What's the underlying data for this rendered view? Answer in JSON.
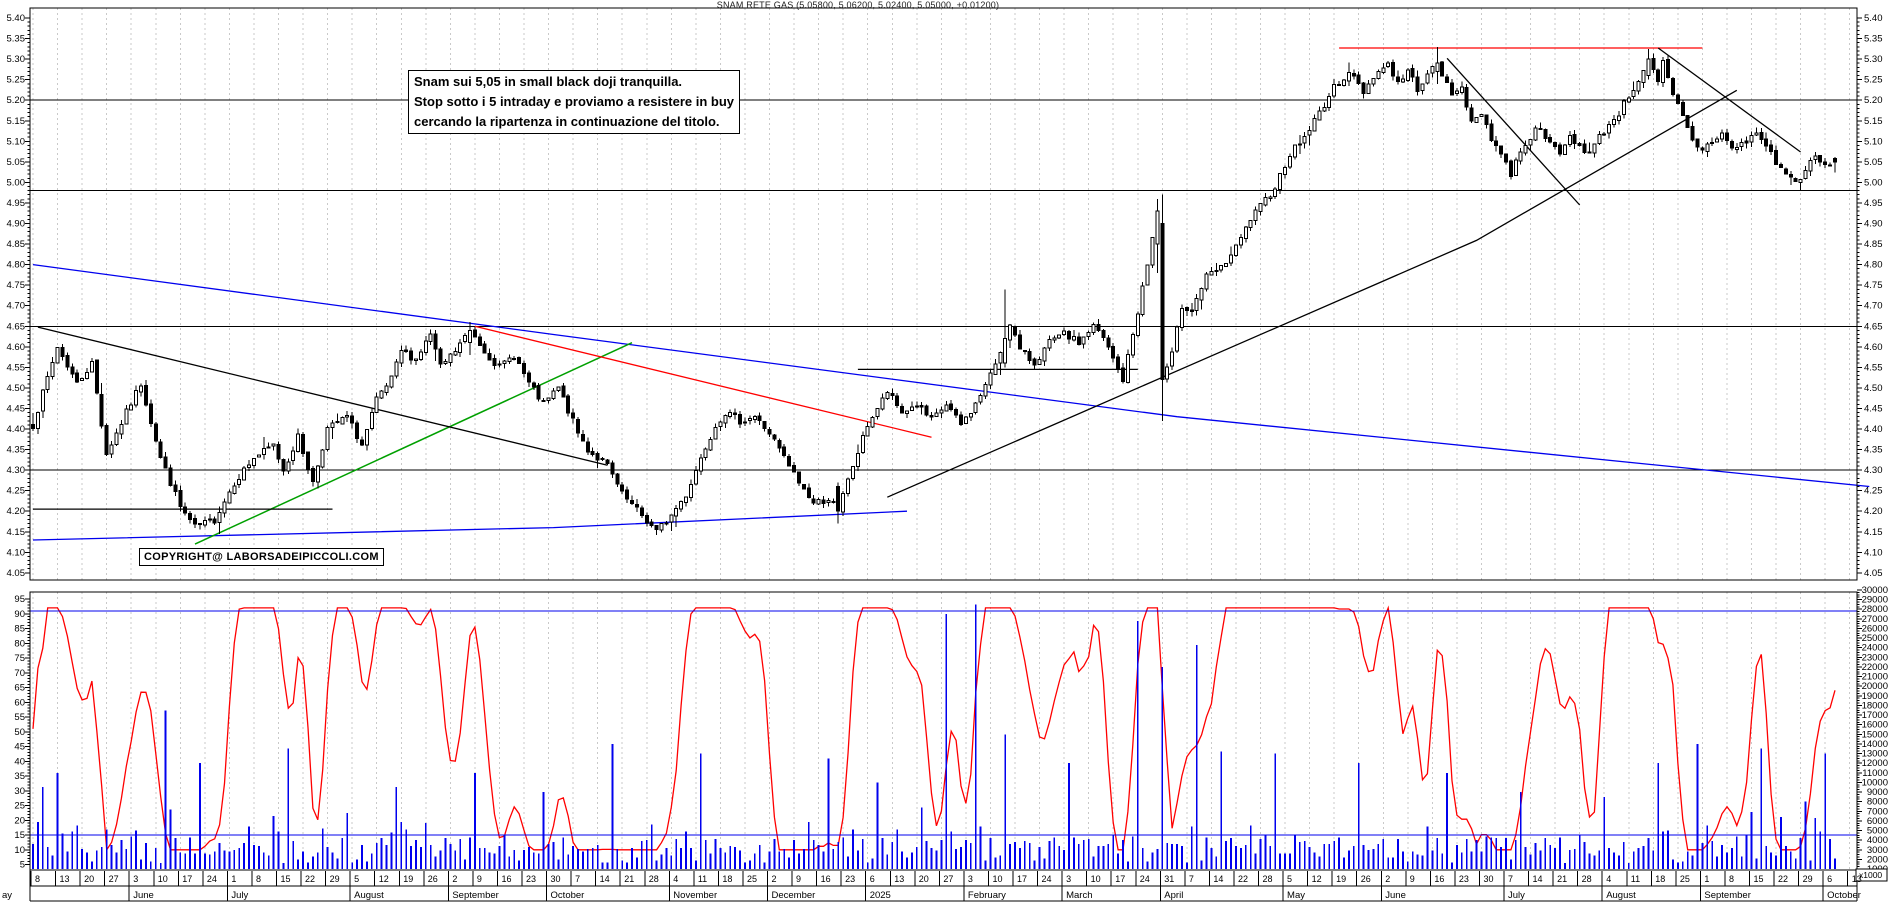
{
  "title": "SNAM RETE GAS (5.05800, 5.06200, 5.02400, 5.05000, +0.01200)",
  "annotation": {
    "line1": "Snam sui 5,05 in small black doji tranquilla.",
    "line2": "Stop sotto i 5 intraday e proviamo a resistere in buy",
    "line3": "cercando la ripartenza in continuazione del titolo."
  },
  "copyright": "COPYRIGHT@ LABORSADEIPICCOLI.COM",
  "colors": {
    "grid": "#c9c9c9",
    "frame": "#000000",
    "candle": "#000000",
    "volume": "#0000ee",
    "oscillator": "#ff0000",
    "blue_line": "#0000ee",
    "red_line": "#ff0000",
    "green_line": "#00a000"
  },
  "axes": {
    "price_labels": [
      "5.40",
      "5.35",
      "5.30",
      "5.25",
      "5.20",
      "5.15",
      "5.10",
      "5.05",
      "5.00",
      "4.95",
      "4.90",
      "4.85",
      "4.80",
      "4.75",
      "4.70",
      "4.65",
      "4.60",
      "4.55",
      "4.50",
      "4.45",
      "4.40",
      "4.35",
      "4.30",
      "4.25",
      "4.20",
      "4.15",
      "4.10",
      "4.05"
    ],
    "oscillator_labels": [
      "95",
      "90",
      "85",
      "80",
      "75",
      "70",
      "65",
      "60",
      "55",
      "50",
      "45",
      "40",
      "35",
      "30",
      "25",
      "20",
      "15",
      "10",
      "5"
    ],
    "volume_labels": [
      "30000",
      "29000",
      "28000",
      "27000",
      "26000",
      "25000",
      "24000",
      "23000",
      "22000",
      "21000",
      "20000",
      "19000",
      "18000",
      "17000",
      "16000",
      "15000",
      "14000",
      "13000",
      "12000",
      "11000",
      "10000",
      "9000",
      "8000",
      "7000",
      "6000",
      "5000",
      "4000",
      "3000",
      "2000",
      "1000"
    ],
    "volume_unit_label": "x1000"
  },
  "x_axis": {
    "months": [
      {
        "label": "ay",
        "weeks": [
          "8",
          "13",
          "20",
          "27"
        ]
      },
      {
        "label": "June",
        "weeks": [
          "3",
          "10",
          "17",
          "24"
        ]
      },
      {
        "label": "July",
        "weeks": [
          "1",
          "8",
          "15",
          "22",
          "29"
        ]
      },
      {
        "label": "August",
        "weeks": [
          "5",
          "12",
          "19",
          "26"
        ]
      },
      {
        "label": "September",
        "weeks": [
          "2",
          "9",
          "16",
          "23"
        ]
      },
      {
        "label": "October",
        "weeks": [
          "30",
          "7",
          "14",
          "21",
          "28"
        ]
      },
      {
        "label": "November",
        "weeks": [
          "4",
          "11",
          "18",
          "25"
        ]
      },
      {
        "label": "December",
        "weeks": [
          "2",
          "9",
          "16",
          "23"
        ]
      },
      {
        "label": "2025",
        "weeks": [
          "6",
          "13",
          "20",
          "27"
        ]
      },
      {
        "label": "February",
        "weeks": [
          "3",
          "10",
          "17",
          "24"
        ]
      },
      {
        "label": "March",
        "weeks": [
          "3",
          "10",
          "17",
          "24"
        ]
      },
      {
        "label": "April",
        "weeks": [
          "31",
          "7",
          "14",
          "22",
          "28"
        ]
      },
      {
        "label": "May",
        "weeks": [
          "5",
          "12",
          "19",
          "26"
        ]
      },
      {
        "label": "June",
        "weeks": [
          "2",
          "9",
          "16",
          "23",
          "30"
        ]
      },
      {
        "label": "July",
        "weeks": [
          "7",
          "14",
          "21",
          "28"
        ]
      },
      {
        "label": "August",
        "weeks": [
          "4",
          "11",
          "18",
          "25"
        ]
      },
      {
        "label": "September",
        "weeks": [
          "1",
          "8",
          "15",
          "22",
          "29"
        ]
      },
      {
        "label": "October",
        "weeks": [
          "6",
          "13"
        ]
      }
    ]
  },
  "chart_data": {
    "type": "candlestick",
    "symbol_title": "SNAM RETE GAS (5.05800, 5.06200, 5.02400, 5.05000, +0.01200)",
    "last_bar": {
      "open": 5.058,
      "high": 5.062,
      "low": 5.024,
      "close": 5.05,
      "change": "+0.01200"
    },
    "price_axis_range": [
      4.05,
      5.4
    ],
    "oscillator_axis_range": [
      5,
      95
    ],
    "volume_axis_range": [
      1000,
      30000
    ],
    "days": 368,
    "noise_seed": 7,
    "price_anchors": [
      [
        0,
        4.41
      ],
      [
        5,
        4.6
      ],
      [
        9,
        4.51
      ],
      [
        12,
        4.56
      ],
      [
        15,
        4.34
      ],
      [
        19,
        4.44
      ],
      [
        22,
        4.51
      ],
      [
        26,
        4.33
      ],
      [
        30,
        4.21
      ],
      [
        33,
        4.16
      ],
      [
        37,
        4.18
      ],
      [
        41,
        4.27
      ],
      [
        45,
        4.33
      ],
      [
        49,
        4.36
      ],
      [
        51,
        4.3
      ],
      [
        54,
        4.38
      ],
      [
        57,
        4.27
      ],
      [
        60,
        4.4
      ],
      [
        64,
        4.43
      ],
      [
        67,
        4.36
      ],
      [
        70,
        4.47
      ],
      [
        73,
        4.52
      ],
      [
        75,
        4.59
      ],
      [
        78,
        4.57
      ],
      [
        81,
        4.63
      ],
      [
        83,
        4.55
      ],
      [
        86,
        4.59
      ],
      [
        89,
        4.64
      ],
      [
        92,
        4.59
      ],
      [
        95,
        4.55
      ],
      [
        98,
        4.58
      ],
      [
        101,
        4.51
      ],
      [
        104,
        4.46
      ],
      [
        107,
        4.5
      ],
      [
        111,
        4.39
      ],
      [
        113,
        4.35
      ],
      [
        117,
        4.31
      ],
      [
        120,
        4.24
      ],
      [
        124,
        4.19
      ],
      [
        127,
        4.15
      ],
      [
        130,
        4.19
      ],
      [
        133,
        4.24
      ],
      [
        136,
        4.33
      ],
      [
        139,
        4.41
      ],
      [
        141,
        4.44
      ],
      [
        144,
        4.42
      ],
      [
        147,
        4.43
      ],
      [
        150,
        4.39
      ],
      [
        153,
        4.33
      ],
      [
        156,
        4.27
      ],
      [
        159,
        4.22
      ],
      [
        162,
        4.23
      ],
      [
        164,
        4.2
      ],
      [
        167,
        4.31
      ],
      [
        170,
        4.41
      ],
      [
        174,
        4.49
      ],
      [
        177,
        4.44
      ],
      [
        180,
        4.46
      ],
      [
        183,
        4.42
      ],
      [
        186,
        4.46
      ],
      [
        189,
        4.41
      ],
      [
        192,
        4.46
      ],
      [
        195,
        4.53
      ],
      [
        198,
        4.62
      ],
      [
        199,
        4.66
      ],
      [
        201,
        4.59
      ],
      [
        204,
        4.56
      ],
      [
        207,
        4.61
      ],
      [
        210,
        4.63
      ],
      [
        213,
        4.61
      ],
      [
        216,
        4.65
      ],
      [
        218,
        4.62
      ],
      [
        220,
        4.57
      ],
      [
        222,
        4.52
      ],
      [
        224,
        4.63
      ],
      [
        227,
        4.8
      ],
      [
        229,
        4.93
      ],
      [
        230,
        4.52
      ],
      [
        232,
        4.58
      ],
      [
        234,
        4.7
      ],
      [
        236,
        4.69
      ],
      [
        239,
        4.77
      ],
      [
        242,
        4.79
      ],
      [
        245,
        4.84
      ],
      [
        248,
        4.91
      ],
      [
        250,
        4.94
      ],
      [
        253,
        4.99
      ],
      [
        256,
        5.07
      ],
      [
        259,
        5.11
      ],
      [
        262,
        5.17
      ],
      [
        265,
        5.23
      ],
      [
        268,
        5.27
      ],
      [
        271,
        5.22
      ],
      [
        273,
        5.26
      ],
      [
        276,
        5.29
      ],
      [
        278,
        5.24
      ],
      [
        280,
        5.27
      ],
      [
        282,
        5.23
      ],
      [
        284,
        5.26
      ],
      [
        286,
        5.29
      ],
      [
        289,
        5.21
      ],
      [
        291,
        5.24
      ],
      [
        293,
        5.14
      ],
      [
        295,
        5.17
      ],
      [
        297,
        5.11
      ],
      [
        299,
        5.07
      ],
      [
        301,
        5.02
      ],
      [
        303,
        5.08
      ],
      [
        305,
        5.11
      ],
      [
        307,
        5.14
      ],
      [
        309,
        5.09
      ],
      [
        311,
        5.07
      ],
      [
        313,
        5.11
      ],
      [
        315,
        5.09
      ],
      [
        317,
        5.07
      ],
      [
        319,
        5.11
      ],
      [
        321,
        5.14
      ],
      [
        323,
        5.17
      ],
      [
        325,
        5.21
      ],
      [
        327,
        5.25
      ],
      [
        329,
        5.3
      ],
      [
        331,
        5.24
      ],
      [
        332,
        5.29
      ],
      [
        334,
        5.21
      ],
      [
        336,
        5.16
      ],
      [
        338,
        5.1
      ],
      [
        340,
        5.08
      ],
      [
        342,
        5.1
      ],
      [
        344,
        5.12
      ],
      [
        346,
        5.08
      ],
      [
        349,
        5.1
      ],
      [
        351,
        5.12
      ],
      [
        353,
        5.09
      ],
      [
        355,
        5.05
      ],
      [
        357,
        5.02
      ],
      [
        359,
        5.0
      ],
      [
        361,
        5.03
      ],
      [
        363,
        5.06
      ],
      [
        365,
        5.04
      ],
      [
        367,
        5.05
      ]
    ],
    "special_candles": [
      {
        "day": 89,
        "o": 4.61,
        "h": 4.66,
        "l": 4.58,
        "c": 4.64
      },
      {
        "day": 164,
        "o": 4.26,
        "h": 4.27,
        "l": 4.17,
        "c": 4.2
      },
      {
        "day": 198,
        "o": 4.56,
        "h": 4.74,
        "l": 4.55,
        "c": 4.62
      },
      {
        "day": 229,
        "o": 4.85,
        "h": 4.96,
        "l": 4.78,
        "c": 4.93
      },
      {
        "day": 230,
        "o": 4.9,
        "h": 4.97,
        "l": 4.42,
        "c": 4.52
      },
      {
        "day": 286,
        "o": 5.27,
        "h": 5.33,
        "l": 5.24,
        "c": 5.29
      },
      {
        "day": 329,
        "o": 5.26,
        "h": 5.325,
        "l": 5.25,
        "c": 5.3
      },
      {
        "day": 367,
        "o": 5.058,
        "h": 5.062,
        "l": 5.024,
        "c": 5.05
      }
    ],
    "volume_spikes": [
      [
        2,
        9500
      ],
      [
        5,
        11000
      ],
      [
        27,
        17500
      ],
      [
        34,
        12000
      ],
      [
        52,
        13500
      ],
      [
        74,
        9500
      ],
      [
        90,
        11000
      ],
      [
        104,
        9000
      ],
      [
        118,
        14000
      ],
      [
        136,
        13000
      ],
      [
        162,
        12500
      ],
      [
        172,
        10000
      ],
      [
        186,
        27500
      ],
      [
        192,
        28500
      ],
      [
        198,
        15000
      ],
      [
        211,
        12000
      ],
      [
        225,
        26800
      ],
      [
        230,
        22000
      ],
      [
        237,
        24300
      ],
      [
        242,
        13200
      ],
      [
        253,
        13000
      ],
      [
        270,
        12000
      ],
      [
        288,
        11000
      ],
      [
        303,
        9000
      ],
      [
        320,
        8500
      ],
      [
        331,
        12000
      ],
      [
        339,
        14000
      ],
      [
        352,
        13500
      ],
      [
        361,
        8000
      ],
      [
        365,
        13000
      ]
    ],
    "volume_base_range": [
      1600,
      4400
    ],
    "oscillator": {
      "type": "stochastic-like",
      "period": 12,
      "smooth": 3,
      "scale_min": 10,
      "scale_max": 92
    },
    "horizontal_levels": [
      5.2,
      4.98,
      4.65,
      4.3
    ],
    "sub_panel_levels": [
      90,
      15
    ],
    "trendlines": [
      {
        "name": "ma-long-descending",
        "color": "blue",
        "points": [
          [
            0,
            4.8
          ],
          [
            106,
            4.63
          ],
          [
            233,
            4.43
          ],
          [
            374,
            4.26
          ]
        ]
      },
      {
        "name": "ma-slow-ascending",
        "color": "blue",
        "points": [
          [
            0,
            4.13
          ],
          [
            106,
            4.16
          ],
          [
            178,
            4.2
          ]
        ]
      },
      {
        "name": "uptrend-green",
        "color": "green",
        "points": [
          [
            33,
            4.12
          ],
          [
            122,
            4.61
          ]
        ]
      },
      {
        "name": "downtrend-red",
        "color": "red",
        "points": [
          [
            90,
            4.65
          ],
          [
            183,
            4.38
          ]
        ]
      },
      {
        "name": "resistance-red-horizontal",
        "color": "red",
        "points": [
          [
            266,
            5.327
          ],
          [
            340,
            5.327
          ]
        ]
      },
      {
        "name": "downtrend-black-left",
        "color": "black",
        "points": [
          [
            1,
            4.648
          ],
          [
            117,
            4.312
          ]
        ]
      },
      {
        "name": "uptrend-black-long",
        "color": "black",
        "points": [
          [
            174,
            4.234
          ],
          [
            294,
            4.859
          ],
          [
            347,
            5.224
          ]
        ]
      },
      {
        "name": "downtrend-black-june",
        "color": "black",
        "points": [
          [
            288,
            5.302
          ],
          [
            315,
            4.945
          ]
        ]
      },
      {
        "name": "downtrend-black-august",
        "color": "black",
        "points": [
          [
            331,
            5.327
          ],
          [
            360,
            5.074
          ]
        ]
      },
      {
        "name": "support-short-left",
        "color": "black",
        "points": [
          [
            0,
            4.205
          ],
          [
            61,
            4.205
          ]
        ]
      },
      {
        "name": "resistance-short-mid",
        "color": "black",
        "points": [
          [
            168,
            4.545
          ],
          [
            225,
            4.545
          ]
        ]
      }
    ]
  }
}
